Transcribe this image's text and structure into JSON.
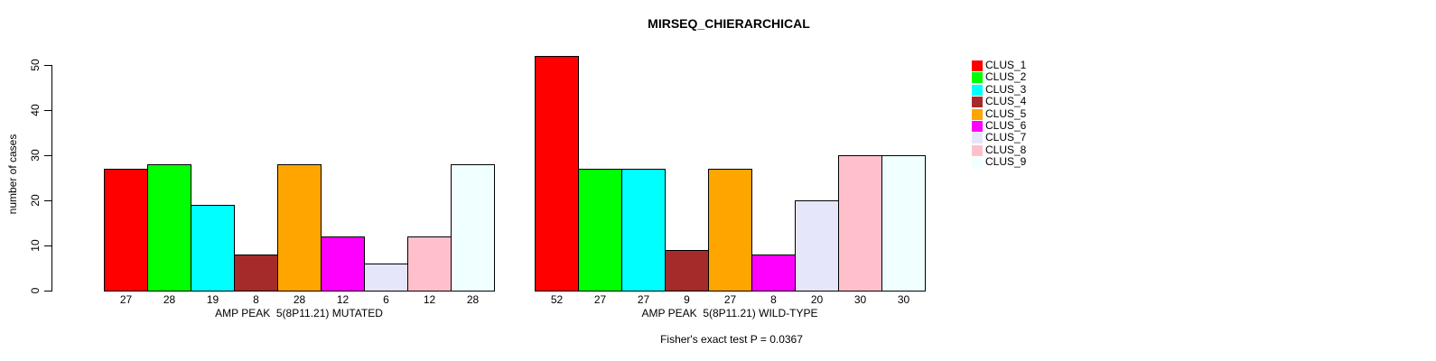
{
  "title": "MIRSEQ_CHIERARCHICAL",
  "footer": "Fisher's exact test P = 0.0367",
  "chart_data": {
    "type": "bar",
    "title": "MIRSEQ_CHIERARCHICAL",
    "xlabel": "",
    "ylabel": "number of cases",
    "ylim": [
      0,
      50
    ],
    "yticks": [
      0,
      10,
      20,
      30,
      40,
      50
    ],
    "grid": false,
    "legend_position": "right",
    "note": "Fisher's exact test P = 0.0367",
    "series": [
      {
        "name": "CLUS_1",
        "color": "#FF0000"
      },
      {
        "name": "CLUS_2",
        "color": "#00FF00"
      },
      {
        "name": "CLUS_3",
        "color": "#00FFFF"
      },
      {
        "name": "CLUS_4",
        "color": "#A52A2A"
      },
      {
        "name": "CLUS_5",
        "color": "#FFA500"
      },
      {
        "name": "CLUS_6",
        "color": "#FF00FF"
      },
      {
        "name": "CLUS_7",
        "color": "#E6E6FA"
      },
      {
        "name": "CLUS_8",
        "color": "#FFC0CB"
      },
      {
        "name": "CLUS_9",
        "color": "#F0FFFF"
      }
    ],
    "groups": [
      {
        "label": "AMP PEAK  5(8P11.21) MUTATED",
        "values": [
          27,
          28,
          19,
          8,
          28,
          12,
          6,
          12,
          28
        ]
      },
      {
        "label": "AMP PEAK  5(8P11.21) WILD-TYPE",
        "values": [
          52,
          27,
          27,
          9,
          27,
          8,
          20,
          30,
          30
        ]
      }
    ]
  }
}
